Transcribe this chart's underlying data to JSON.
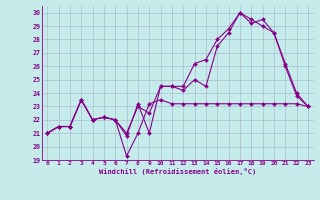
{
  "xlabel": "Windchill (Refroidissement éolien,°C)",
  "bg_color": "#c5ecea",
  "line_color": "#880088",
  "xlim": [
    -0.5,
    23.5
  ],
  "ylim": [
    19,
    30.5
  ],
  "yticks": [
    19,
    20,
    21,
    22,
    23,
    24,
    25,
    26,
    27,
    28,
    29,
    30
  ],
  "xticks": [
    0,
    1,
    2,
    3,
    4,
    5,
    6,
    7,
    8,
    9,
    10,
    11,
    12,
    13,
    14,
    15,
    16,
    17,
    18,
    19,
    20,
    21,
    22,
    23
  ],
  "series": [
    {
      "x": [
        0,
        1,
        2,
        3,
        4,
        5,
        6,
        7,
        8,
        9,
        10,
        11,
        12,
        13,
        14,
        15,
        16,
        17,
        18,
        19,
        20,
        21,
        22,
        23
      ],
      "y": [
        21,
        21.5,
        21.5,
        23.5,
        22.0,
        22.2,
        22.0,
        20.8,
        23.2,
        21.0,
        24.5,
        24.5,
        24.2,
        25.0,
        24.5,
        27.5,
        28.5,
        30.0,
        29.2,
        29.5,
        28.5,
        26.2,
        24.0,
        23.0
      ]
    },
    {
      "x": [
        0,
        1,
        2,
        3,
        4,
        5,
        6,
        7,
        8,
        9,
        10,
        11,
        12,
        13,
        14,
        15,
        16,
        17,
        18,
        19,
        20,
        21,
        22,
        23
      ],
      "y": [
        21,
        21.5,
        21.5,
        23.5,
        22.0,
        22.2,
        22.0,
        19.3,
        21.0,
        23.2,
        23.5,
        23.2,
        23.2,
        23.2,
        23.2,
        23.2,
        23.2,
        23.2,
        23.2,
        23.2,
        23.2,
        23.2,
        23.2,
        23.0
      ]
    },
    {
      "x": [
        0,
        1,
        2,
        3,
        4,
        5,
        6,
        7,
        8,
        9,
        10,
        11,
        12,
        13,
        14,
        15,
        16,
        17,
        18,
        19,
        20,
        21,
        22,
        23
      ],
      "y": [
        21,
        21.5,
        21.5,
        23.5,
        22.0,
        22.2,
        22.0,
        21.0,
        23.0,
        22.5,
        24.5,
        24.5,
        24.5,
        26.2,
        26.5,
        28.0,
        28.8,
        30.0,
        29.5,
        29.0,
        28.5,
        26.0,
        23.8,
        23.0
      ]
    }
  ]
}
